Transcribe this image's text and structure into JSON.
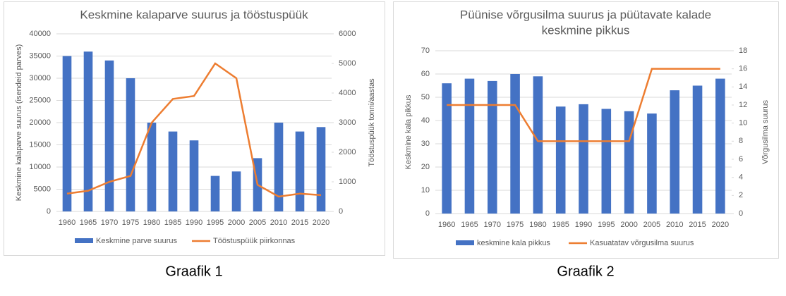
{
  "chart_data": [
    {
      "type": "combo",
      "title": [
        "Keskmine kalaparve suurus ja tööstuspüük"
      ],
      "caption": "Graafik 1",
      "ylabel": "Keskmine kalaparve suurus (isendeid parves)",
      "y2label": "Tööstuspüük tonni/aastas",
      "categories": [
        "1960",
        "1965",
        "1970",
        "1975",
        "1980",
        "1985",
        "1990",
        "1995",
        "2000",
        "2005",
        "2010",
        "2015",
        "2020"
      ],
      "ylim": [
        0,
        40000
      ],
      "yticks": [
        0,
        5000,
        10000,
        15000,
        20000,
        25000,
        30000,
        35000,
        40000
      ],
      "y2lim": [
        0,
        6000
      ],
      "y2ticks": [
        0,
        1000,
        2000,
        3000,
        4000,
        5000,
        6000
      ],
      "grid": true,
      "legend": "bottom",
      "series": [
        {
          "name": "Keskmine parve suurus",
          "type": "bar",
          "color": "#4472c4",
          "values": [
            35000,
            36000,
            34000,
            30000,
            20000,
            18000,
            16000,
            8000,
            9000,
            12000,
            20000,
            18000,
            19000
          ]
        },
        {
          "name": "Tööstuspüük piirkonnas",
          "type": "line",
          "axis": "y2",
          "color": "#ed7d31",
          "values": [
            600,
            700,
            1000,
            1200,
            3000,
            3800,
            3900,
            5000,
            4500,
            900,
            500,
            600,
            550
          ]
        }
      ]
    },
    {
      "type": "combo",
      "title": [
        "Püünise võrgusilma suurus ja püütavate kalade",
        "keskmine pikkus"
      ],
      "caption": "Graafik 2",
      "ylabel": "Keskmine kala pikkus",
      "y2label": "Võrgusilma suurus",
      "categories": [
        "1960",
        "1965",
        "1970",
        "1975",
        "1980",
        "1985",
        "1990",
        "1995",
        "2000",
        "2005",
        "2010",
        "2015",
        "2020"
      ],
      "ylim": [
        0,
        70
      ],
      "yticks": [
        0,
        10,
        20,
        30,
        40,
        50,
        60,
        70
      ],
      "y2lim": [
        0,
        18
      ],
      "y2ticks": [
        0,
        2,
        4,
        6,
        8,
        10,
        12,
        14,
        16,
        18
      ],
      "grid": true,
      "legend": "bottom",
      "series": [
        {
          "name": "keskmine kala pikkus",
          "type": "bar",
          "color": "#4472c4",
          "values": [
            56,
            58,
            57,
            60,
            59,
            46,
            47,
            45,
            44,
            43,
            53,
            55,
            58
          ]
        },
        {
          "name": "Kasuatatav võrgusilma suurus",
          "type": "line",
          "axis": "y2",
          "color": "#ed7d31",
          "values": [
            12,
            12,
            12,
            12,
            8,
            8,
            8,
            8,
            8,
            16,
            16,
            16,
            16
          ]
        }
      ]
    }
  ]
}
